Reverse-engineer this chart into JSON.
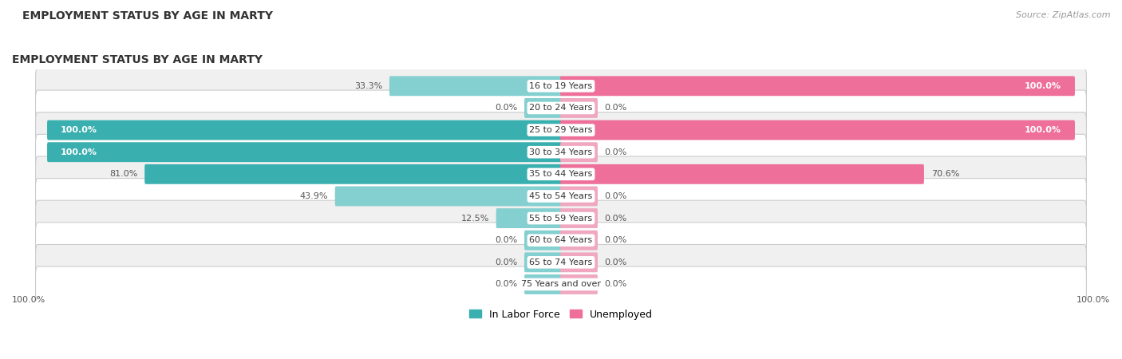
{
  "title": "EMPLOYMENT STATUS BY AGE IN MARTY",
  "source": "Source: ZipAtlas.com",
  "categories": [
    "16 to 19 Years",
    "20 to 24 Years",
    "25 to 29 Years",
    "30 to 34 Years",
    "35 to 44 Years",
    "45 to 54 Years",
    "55 to 59 Years",
    "60 to 64 Years",
    "65 to 74 Years",
    "75 Years and over"
  ],
  "labor_force": [
    33.3,
    0.0,
    100.0,
    100.0,
    81.0,
    43.9,
    12.5,
    0.0,
    0.0,
    0.0
  ],
  "unemployed": [
    100.0,
    0.0,
    100.0,
    0.0,
    70.6,
    0.0,
    0.0,
    0.0,
    0.0,
    0.0
  ],
  "labor_force_color_dark": "#3aafaf",
  "labor_force_color_light": "#84cfcf",
  "unemployed_color_dark": "#ee6f9a",
  "unemployed_color_light": "#f0a8c0",
  "row_bg_odd": "#f0f0f0",
  "row_bg_even": "#ffffff",
  "row_border_color": "#cccccc",
  "title_color": "#333333",
  "label_color": "#555555",
  "source_color": "#999999",
  "title_fontsize": 10,
  "label_fontsize": 8,
  "legend_fontsize": 9,
  "source_fontsize": 8,
  "background_color": "#ffffff",
  "max_val": 100.0,
  "stub_val": 7.0,
  "left_axis_label": "100.0%",
  "right_axis_label": "100.0%"
}
